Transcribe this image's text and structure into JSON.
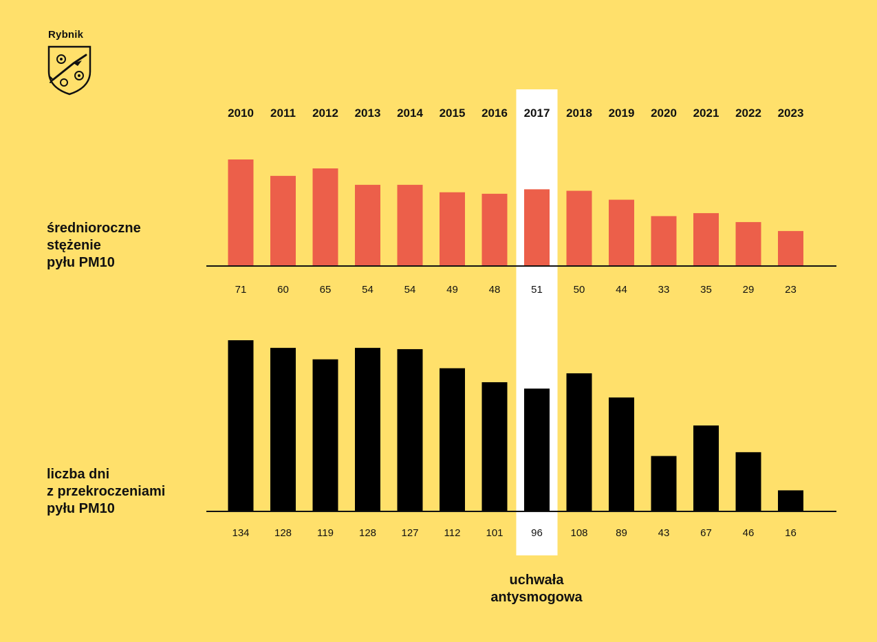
{
  "brand": {
    "name": "Rybnik",
    "logo_icon": "rybnik-coat-of-arms-icon"
  },
  "labels": {
    "avg": [
      "średnioroczne",
      "stężenie",
      "pyłu PM10"
    ],
    "days": [
      "liczba dni",
      "z przekroczeniami",
      "pyłu PM10"
    ]
  },
  "note": {
    "lines": [
      "uchwała",
      "antysmogowa"
    ]
  },
  "chart_data": [
    {
      "type": "bar",
      "categories": [
        "2010",
        "2011",
        "2012",
        "2013",
        "2014",
        "2015",
        "2016",
        "2017",
        "2018",
        "2019",
        "2020",
        "2021",
        "2022",
        "2023"
      ],
      "values": [
        71,
        60,
        65,
        54,
        54,
        49,
        48,
        51,
        50,
        44,
        33,
        35,
        29,
        23
      ],
      "ylim": [
        0,
        71
      ],
      "grid": false,
      "color": "#ec5f4a",
      "highlight_category": "2017",
      "highlight_color": "#ffffff"
    },
    {
      "type": "bar",
      "categories": [
        "2010",
        "2011",
        "2012",
        "2013",
        "2014",
        "2015",
        "2016",
        "2017",
        "2018",
        "2019",
        "2020",
        "2021",
        "2022",
        "2023"
      ],
      "values": [
        134,
        128,
        119,
        128,
        127,
        112,
        101,
        96,
        108,
        89,
        43,
        67,
        46,
        16
      ],
      "ylim": [
        0,
        134
      ],
      "grid": false,
      "color": "#000000",
      "highlight_category": "2017",
      "highlight_color": "#ffffff"
    }
  ]
}
